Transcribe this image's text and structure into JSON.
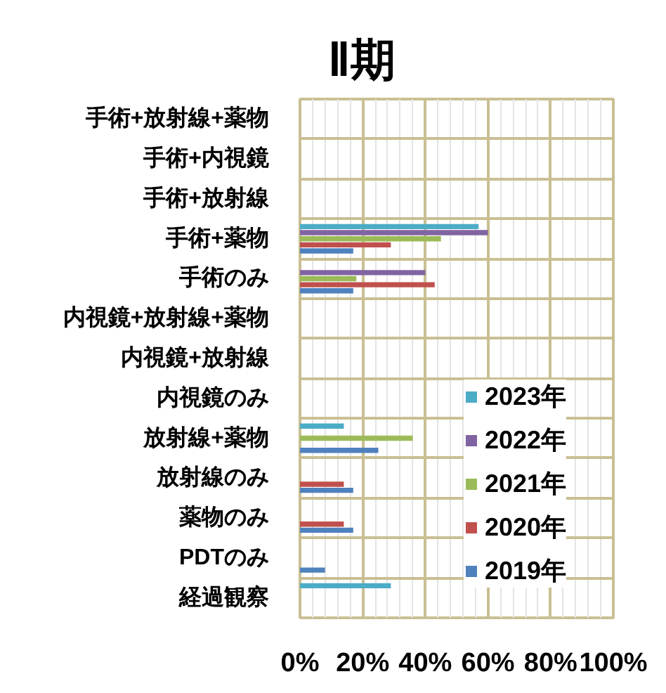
{
  "chart_data": {
    "type": "bar",
    "title": "Ⅱ期",
    "orientation": "horizontal",
    "categories": [
      "手術+放射線+薬物",
      "手術+内視鏡",
      "手術+放射線",
      "手術+薬物",
      "手術のみ",
      "内視鏡+放射線+薬物",
      "内視鏡+放射線",
      "内視鏡のみ",
      "放射線+薬物",
      "放射線のみ",
      "薬物のみ",
      "PDTのみ",
      "経過観察"
    ],
    "series": [
      {
        "name": "2023年",
        "color": "#4bacc6",
        "values": [
          null,
          null,
          null,
          57,
          null,
          null,
          null,
          null,
          14,
          null,
          null,
          null,
          29
        ]
      },
      {
        "name": "2022年",
        "color": "#8064a2",
        "values": [
          null,
          null,
          null,
          60,
          40,
          null,
          null,
          null,
          null,
          null,
          null,
          null,
          null
        ]
      },
      {
        "name": "2021年",
        "color": "#9bbb59",
        "values": [
          null,
          null,
          null,
          45,
          18,
          null,
          null,
          null,
          36,
          null,
          null,
          null,
          null
        ]
      },
      {
        "name": "2020年",
        "color": "#c0504d",
        "values": [
          null,
          null,
          null,
          29,
          43,
          null,
          null,
          null,
          null,
          14,
          14,
          null,
          null
        ]
      },
      {
        "name": "2019年",
        "color": "#4f81bd",
        "values": [
          null,
          null,
          null,
          17,
          17,
          null,
          null,
          null,
          25,
          17,
          17,
          8,
          null
        ]
      }
    ],
    "xlim": [
      0,
      100
    ],
    "xticks": [
      {
        "value": 0,
        "label": "0%"
      },
      {
        "value": 20,
        "label": "20%"
      },
      {
        "value": 40,
        "label": "40%"
      },
      {
        "value": 60,
        "label": "60%"
      },
      {
        "value": 80,
        "label": "80%"
      },
      {
        "value": 100,
        "label": "100%"
      }
    ],
    "grid": true,
    "legend": "bottom right"
  }
}
